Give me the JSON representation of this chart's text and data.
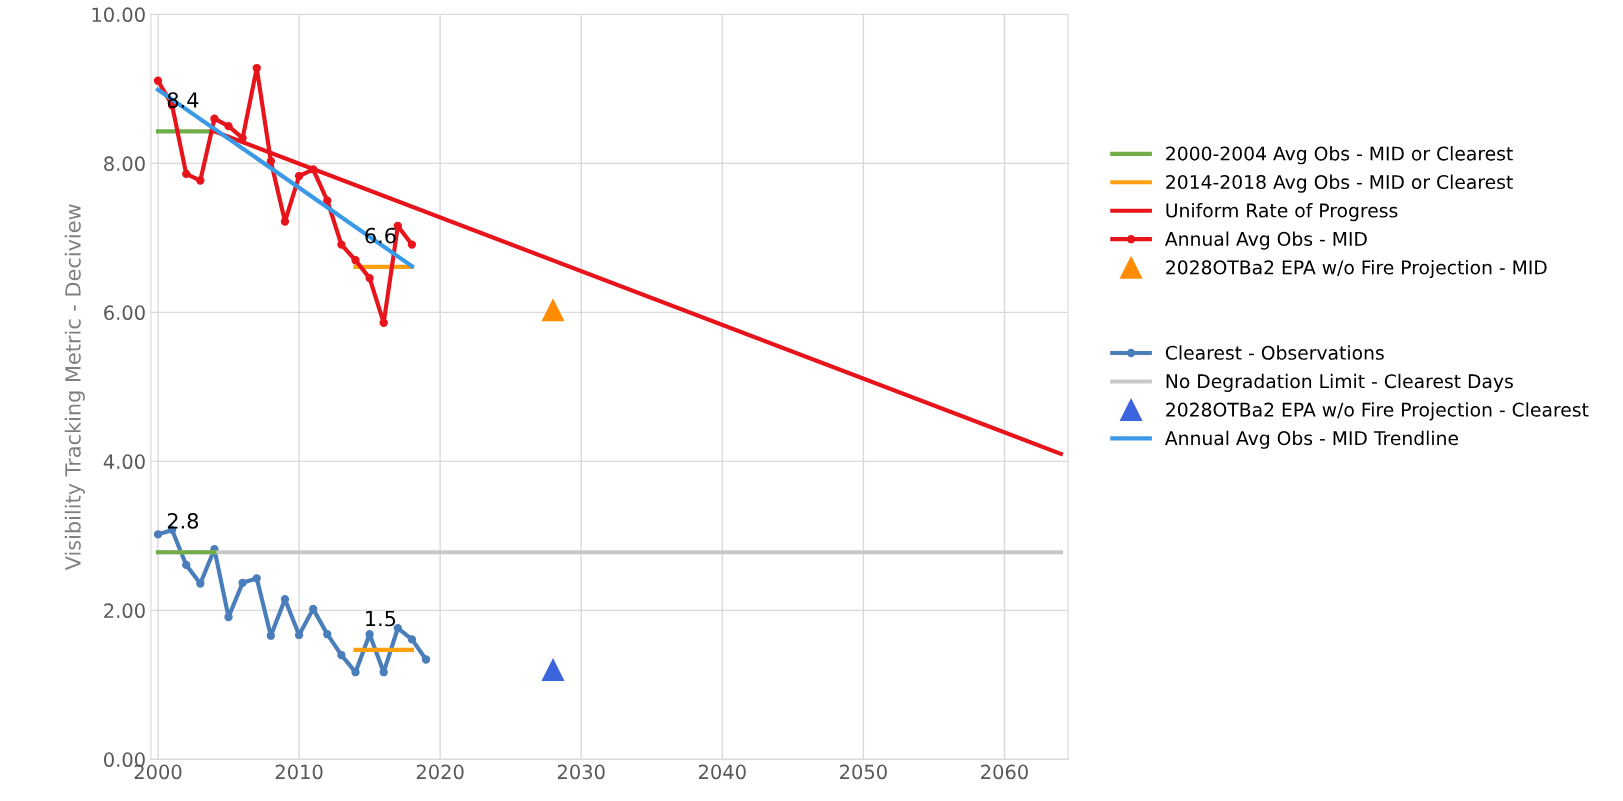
{
  "chart_data": {
    "type": "line",
    "ylabel": "Visibility Tracking Metric - Deciview",
    "xlim": [
      1999.5,
      2064.5
    ],
    "xticks": [
      2000,
      2010,
      2020,
      2030,
      2040,
      2050,
      2060
    ],
    "ylim": [
      0,
      10
    ],
    "yticks": [
      {
        "value": 0,
        "label": "0.00"
      },
      {
        "value": 2,
        "label": "2.00"
      },
      {
        "value": 4,
        "label": "4.00"
      },
      {
        "value": 6,
        "label": "6.00"
      },
      {
        "value": 8,
        "label": "8.00"
      },
      {
        "value": 10,
        "label": "10.00"
      }
    ],
    "grid": true,
    "legend": "right",
    "series": [
      {
        "name": "2000-2004 Avg Obs - MID or Clearest",
        "color": "#70ad47",
        "marker": "none",
        "x": [
          2000,
          2004
        ],
        "values": [
          8.43,
          8.43
        ],
        "value_labels": [
          "8.4",
          null
        ]
      },
      {
        "name": "2014-2018 Avg Obs - MID or Clearest",
        "color": "#ffa010",
        "marker": "none",
        "x": [
          2014,
          2018
        ],
        "values": [
          6.61,
          6.61
        ],
        "value_labels": [
          "6.6",
          null
        ]
      },
      {
        "name": "Uniform Rate of Progress",
        "color": "#e8141c",
        "marker": "none",
        "x": [
          2004,
          2064
        ],
        "values": [
          8.43,
          4.1
        ]
      },
      {
        "name": "Annual Avg Obs - MID",
        "color": "#e8141c",
        "marker": "circle",
        "x": [
          2000,
          2001,
          2002,
          2003,
          2004,
          2005,
          2006,
          2007,
          2008,
          2009,
          2010,
          2011,
          2012,
          2013,
          2014,
          2015,
          2016,
          2017,
          2018
        ],
        "values": [
          9.11,
          8.78,
          7.86,
          7.77,
          8.6,
          8.5,
          8.34,
          9.28,
          8.03,
          7.22,
          7.83,
          7.92,
          7.5,
          6.91,
          6.7,
          6.46,
          5.86,
          7.16,
          6.91
        ]
      },
      {
        "name": "2028OTBa2 EPA w/o Fire Projection - MID",
        "type": "scatter",
        "color": "#ff8c00",
        "marker": "triangle",
        "x": [
          2028
        ],
        "values": [
          6.03
        ]
      },
      {
        "name": "Clearest - Observations",
        "color": "#4a7ebb",
        "marker": "circle",
        "x": [
          2000,
          2001,
          2002,
          2003,
          2004,
          2005,
          2006,
          2007,
          2008,
          2009,
          2010,
          2011,
          2012,
          2013,
          2014,
          2015,
          2016,
          2017,
          2018,
          2019
        ],
        "values": [
          3.02,
          3.08,
          2.61,
          2.36,
          2.82,
          1.91,
          2.37,
          2.43,
          1.66,
          2.15,
          1.67,
          2.02,
          1.68,
          1.4,
          1.17,
          1.68,
          1.17,
          1.76,
          1.61,
          1.34
        ]
      },
      {
        "name": "No Degradation Limit - Clearest Days",
        "color": "#c8c8c8",
        "marker": "none",
        "x": [
          2000,
          2064
        ],
        "values": [
          2.78,
          2.78
        ]
      },
      {
        "name": "2028OTBa2 EPA w/o Fire Projection - Clearest",
        "type": "scatter",
        "color": "#3c64dc",
        "marker": "triangle",
        "x": [
          2028
        ],
        "values": [
          1.2
        ]
      },
      {
        "name": "Annual Avg Obs - MID Trendline",
        "color": "#3a9ae8",
        "marker": "none",
        "x": [
          2000,
          2018
        ],
        "values": [
          8.99,
          6.62
        ]
      },
      {
        "color": "#70ad47",
        "marker": "none",
        "x": [
          2000,
          2004
        ],
        "values": [
          2.78,
          2.78
        ],
        "value_labels": [
          "2.8",
          null
        ]
      },
      {
        "color": "#ffa010",
        "marker": "none",
        "x": [
          2014,
          2018
        ],
        "values": [
          1.47,
          1.47
        ],
        "value_labels": [
          "1.5",
          null
        ]
      }
    ]
  }
}
